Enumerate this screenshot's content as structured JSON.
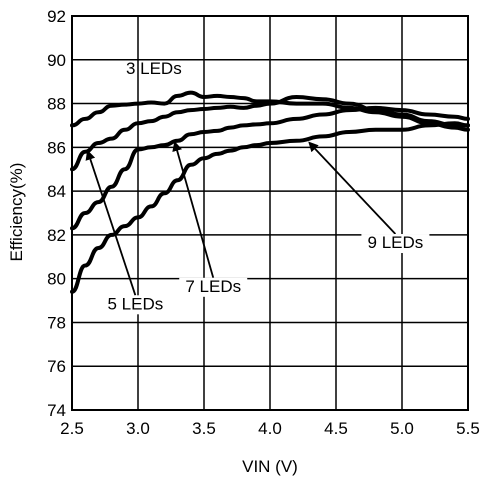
{
  "chart_data": {
    "type": "line",
    "title": "",
    "xlabel": "VIN (V)",
    "ylabel": "Efficiency(%)",
    "xlim": [
      2.5,
      5.5
    ],
    "ylim": [
      74,
      92
    ],
    "xticks": [
      2.5,
      3.0,
      3.5,
      4.0,
      4.5,
      5.0,
      5.5
    ],
    "xtick_labels": [
      "2.5",
      "3.0",
      "3.5",
      "4.0",
      "4.5",
      "5.0",
      "5.5"
    ],
    "yticks": [
      74,
      76,
      78,
      80,
      82,
      84,
      86,
      88,
      90,
      92
    ],
    "ytick_labels": [
      "74",
      "76",
      "78",
      "80",
      "82",
      "84",
      "86",
      "88",
      "90",
      "92"
    ],
    "grid": true,
    "line_color": "#000000",
    "series": [
      {
        "name": "3 LEDs",
        "x": [
          2.5,
          2.6,
          2.7,
          2.8,
          2.9,
          3.0,
          3.1,
          3.2,
          3.3,
          3.4,
          3.5,
          3.6,
          3.7,
          3.8,
          3.9,
          4.0,
          4.2,
          4.4,
          4.6,
          4.8,
          5.0,
          5.2,
          5.4,
          5.5
        ],
        "y": [
          87.0,
          87.3,
          87.6,
          87.9,
          87.95,
          88.0,
          88.05,
          88.0,
          88.35,
          88.5,
          88.3,
          88.35,
          88.3,
          88.25,
          88.1,
          88.1,
          88.0,
          88.0,
          87.8,
          87.6,
          87.4,
          87.1,
          86.9,
          86.8
        ]
      },
      {
        "name": "5 LEDs",
        "x": [
          2.5,
          2.6,
          2.7,
          2.8,
          2.9,
          3.0,
          3.1,
          3.2,
          3.3,
          3.4,
          3.5,
          3.6,
          3.7,
          3.8,
          3.9,
          4.0,
          4.2,
          4.4,
          4.6,
          4.8,
          5.0,
          5.2,
          5.4,
          5.5
        ],
        "y": [
          85.0,
          85.8,
          86.2,
          86.4,
          86.8,
          87.1,
          87.2,
          87.4,
          87.6,
          87.7,
          87.75,
          87.8,
          87.85,
          87.8,
          87.9,
          88.0,
          88.3,
          88.2,
          88.0,
          87.7,
          87.5,
          87.2,
          87.0,
          87.0
        ]
      },
      {
        "name": "7 LEDs",
        "x": [
          2.5,
          2.6,
          2.7,
          2.8,
          2.9,
          3.0,
          3.1,
          3.2,
          3.3,
          3.4,
          3.5,
          3.6,
          3.7,
          3.8,
          3.9,
          4.0,
          4.2,
          4.4,
          4.6,
          4.8,
          5.0,
          5.2,
          5.4,
          5.5
        ],
        "y": [
          82.3,
          83.0,
          83.5,
          84.2,
          85.0,
          85.9,
          86.0,
          86.1,
          86.3,
          86.6,
          86.7,
          86.75,
          86.9,
          87.0,
          87.05,
          87.1,
          87.3,
          87.5,
          87.7,
          87.8,
          87.7,
          87.5,
          87.4,
          87.3
        ]
      },
      {
        "name": "9 LEDs",
        "x": [
          2.5,
          2.6,
          2.7,
          2.8,
          2.9,
          3.0,
          3.1,
          3.2,
          3.3,
          3.4,
          3.5,
          3.6,
          3.7,
          3.8,
          3.9,
          4.0,
          4.2,
          4.4,
          4.6,
          4.8,
          5.0,
          5.2,
          5.4,
          5.5
        ],
        "y": [
          79.4,
          80.6,
          81.4,
          82.0,
          82.4,
          82.8,
          83.3,
          83.9,
          84.5,
          85.2,
          85.5,
          85.7,
          85.85,
          86.0,
          86.1,
          86.2,
          86.3,
          86.5,
          86.7,
          86.8,
          86.8,
          87.0,
          87.1,
          87.0
        ]
      }
    ],
    "annotations": [
      {
        "text": "3 LEDs",
        "series": "3 LEDs",
        "label_x": 3.12,
        "label_y": 89.35,
        "arrow": false
      },
      {
        "text": "5 LEDs",
        "series": "5 LEDs",
        "label_x": 2.98,
        "label_y": 78.6,
        "arrow": true,
        "arrow_to_x": 2.62,
        "arrow_to_y": 85.8
      },
      {
        "text": "7 LEDs",
        "series": "7 LEDs",
        "label_x": 3.57,
        "label_y": 79.4,
        "arrow": true,
        "arrow_to_x": 3.28,
        "arrow_to_y": 86.2
      },
      {
        "text": "9 LEDs",
        "series": "9 LEDs",
        "label_x": 4.95,
        "label_y": 81.4,
        "arrow": true,
        "arrow_to_x": 4.3,
        "arrow_to_y": 86.2
      }
    ]
  }
}
